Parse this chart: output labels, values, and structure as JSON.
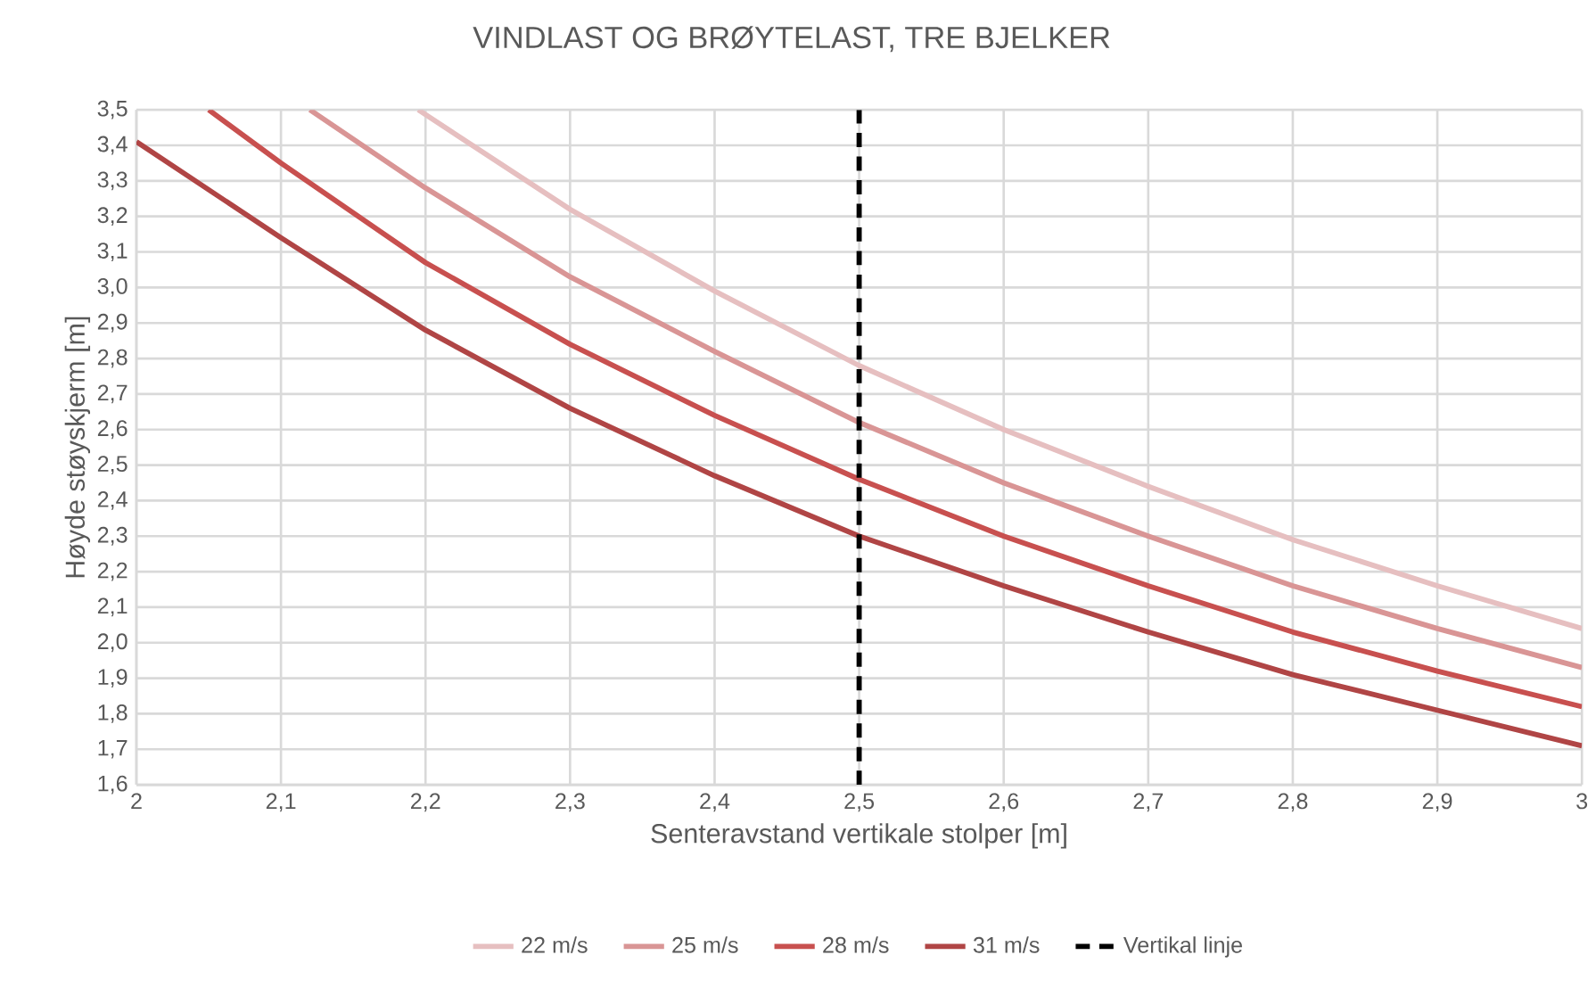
{
  "chart_data": {
    "type": "line",
    "title": "VINDLAST OG BRØYTELAST, TRE BJELKER",
    "xlabel": "Senteravstand vertikale stolper [m]",
    "ylabel": "Høyde støyskjerm [m]",
    "series": [
      {
        "name": "22 m/s",
        "color": "#e6bfc0",
        "x": [
          2.195,
          2.3,
          2.4,
          2.5,
          2.6,
          2.7,
          2.8,
          2.9,
          3.0
        ],
        "values": [
          3.5,
          3.22,
          2.99,
          2.78,
          2.6,
          2.44,
          2.29,
          2.16,
          2.04
        ]
      },
      {
        "name": "25 m/s",
        "color": "#d99595",
        "x": [
          2.12,
          2.2,
          2.3,
          2.4,
          2.5,
          2.6,
          2.7,
          2.8,
          2.9,
          3.0
        ],
        "values": [
          3.5,
          3.28,
          3.03,
          2.82,
          2.62,
          2.45,
          2.3,
          2.16,
          2.04,
          1.93
        ]
      },
      {
        "name": "28 m/s",
        "color": "#c8504f",
        "x": [
          2.05,
          2.1,
          2.2,
          2.3,
          2.4,
          2.5,
          2.6,
          2.7,
          2.8,
          2.9,
          3.0
        ],
        "values": [
          3.5,
          3.35,
          3.07,
          2.84,
          2.64,
          2.46,
          2.3,
          2.16,
          2.03,
          1.92,
          1.82
        ]
      },
      {
        "name": "31 m/s",
        "color": "#b04545",
        "x": [
          2.0,
          2.1,
          2.2,
          2.3,
          2.4,
          2.5,
          2.6,
          2.7,
          2.8,
          2.9,
          3.0
        ],
        "values": [
          3.41,
          3.14,
          2.88,
          2.66,
          2.47,
          2.3,
          2.16,
          2.03,
          1.91,
          1.81,
          1.71
        ]
      }
    ],
    "ref_lines": [
      {
        "axis": "x",
        "value": 2.5,
        "label": "Vertikal linje",
        "color": "#000000",
        "line_style": "dashed"
      }
    ],
    "xlim": [
      2,
      3
    ],
    "ylim": [
      1.6,
      3.5
    ],
    "xticks": [
      2,
      {
        "value": 2.1,
        "label": "2,1"
      },
      {
        "value": 2.2,
        "label": "2,2"
      },
      {
        "value": 2.3,
        "label": "2,3"
      },
      {
        "value": 2.4,
        "label": "2,4"
      },
      {
        "value": 2.5,
        "label": "2,5"
      },
      {
        "value": 2.6,
        "label": "2,6"
      },
      {
        "value": 2.7,
        "label": "2,7"
      },
      {
        "value": 2.8,
        "label": "2,8"
      },
      {
        "value": 2.9,
        "label": "2,9"
      },
      3
    ],
    "yticks": [
      {
        "value": 1.6,
        "label": "1,6"
      },
      {
        "value": 1.7,
        "label": "1,7"
      },
      {
        "value": 1.8,
        "label": "1,8"
      },
      {
        "value": 1.9,
        "label": "1,9"
      },
      {
        "value": 2.0,
        "label": "2,0"
      },
      {
        "value": 2.1,
        "label": "2,1"
      },
      {
        "value": 2.2,
        "label": "2,2"
      },
      {
        "value": 2.3,
        "label": "2,3"
      },
      {
        "value": 2.4,
        "label": "2,4"
      },
      {
        "value": 2.5,
        "label": "2,5"
      },
      {
        "value": 2.6,
        "label": "2,6"
      },
      {
        "value": 2.7,
        "label": "2,7"
      },
      {
        "value": 2.8,
        "label": "2,8"
      },
      {
        "value": 2.9,
        "label": "2,9"
      },
      {
        "value": 3.0,
        "label": "3,0"
      },
      {
        "value": 3.1,
        "label": "3,1"
      },
      {
        "value": 3.2,
        "label": "3,2"
      },
      {
        "value": 3.3,
        "label": "3,3"
      },
      {
        "value": 3.4,
        "label": "3,4"
      },
      {
        "value": 3.5,
        "label": "3,5"
      }
    ],
    "grid": true,
    "legend": "bottom",
    "marker": "none",
    "line_style": "solid"
  }
}
